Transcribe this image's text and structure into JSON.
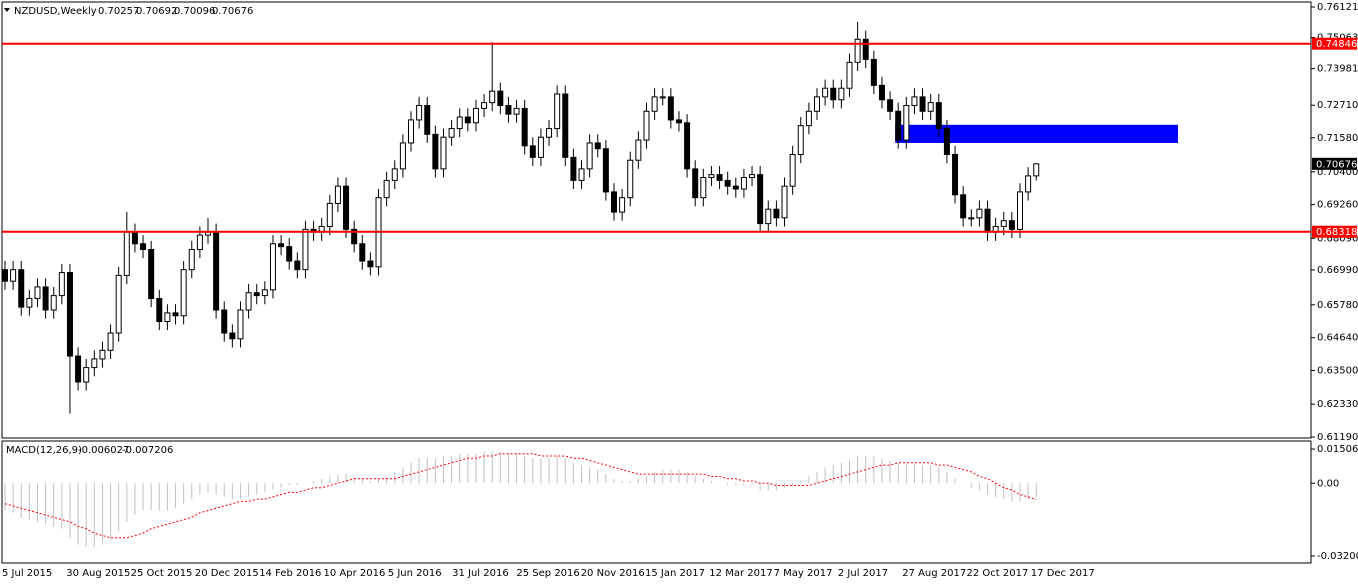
{
  "chart_data": [
    {
      "type": "candlestick",
      "title": "NZDUSD,Weekly",
      "open": [
        0.67,
        0.666,
        0.67,
        0.657,
        0.66,
        0.664,
        0.656,
        0.661,
        0.669,
        0.64,
        0.631,
        0.636,
        0.639,
        0.642,
        0.648,
        0.668,
        0.683,
        0.679,
        0.677,
        0.66,
        0.652,
        0.655,
        0.654,
        0.67,
        0.677,
        0.682,
        0.683,
        0.656,
        0.648,
        0.646,
        0.656,
        0.662,
        0.661,
        0.663,
        0.679,
        0.678,
        0.673,
        0.67,
        0.684,
        0.683,
        0.685,
        0.693,
        0.699,
        0.684,
        0.679,
        0.673,
        0.671,
        0.695,
        0.701,
        0.705,
        0.714,
        0.722,
        0.727,
        0.717,
        0.705,
        0.716,
        0.719,
        0.723,
        0.721,
        0.726,
        0.728,
        0.732,
        0.727,
        0.724,
        0.726,
        0.713,
        0.709,
        0.716,
        0.719,
        0.731,
        0.709,
        0.701,
        0.705,
        0.714,
        0.712,
        0.697,
        0.69,
        0.695,
        0.708,
        0.715,
        0.725,
        0.73,
        0.73,
        0.722,
        0.721,
        0.705,
        0.695,
        0.702,
        0.703,
        0.701,
        0.699,
        0.698,
        0.702,
        0.703,
        0.686,
        0.691,
        0.688,
        0.699,
        0.71,
        0.72,
        0.725,
        0.73,
        0.733,
        0.729,
        0.733,
        0.742,
        0.75,
        0.743,
        0.734,
        0.729,
        0.725,
        0.715,
        0.727,
        0.73,
        0.725,
        0.728,
        0.719,
        0.71,
        0.696,
        0.688,
        0.688,
        0.691,
        0.683,
        0.685,
        0.687,
        0.684,
        0.697,
        0.70257
      ],
      "high": [
        0.673,
        0.673,
        0.673,
        0.663,
        0.667,
        0.667,
        0.664,
        0.672,
        0.672,
        0.643,
        0.639,
        0.642,
        0.645,
        0.651,
        0.671,
        0.69,
        0.686,
        0.682,
        0.68,
        0.663,
        0.658,
        0.658,
        0.673,
        0.68,
        0.685,
        0.688,
        0.686,
        0.659,
        0.651,
        0.659,
        0.665,
        0.665,
        0.666,
        0.682,
        0.682,
        0.681,
        0.676,
        0.687,
        0.687,
        0.688,
        0.696,
        0.702,
        0.702,
        0.687,
        0.682,
        0.676,
        0.698,
        0.704,
        0.708,
        0.717,
        0.725,
        0.73,
        0.73,
        0.72,
        0.719,
        0.722,
        0.726,
        0.726,
        0.729,
        0.731,
        0.749,
        0.735,
        0.73,
        0.729,
        0.729,
        0.716,
        0.719,
        0.722,
        0.734,
        0.734,
        0.712,
        0.708,
        0.717,
        0.717,
        0.715,
        0.7,
        0.698,
        0.711,
        0.718,
        0.728,
        0.733,
        0.733,
        0.733,
        0.725,
        0.724,
        0.708,
        0.705,
        0.706,
        0.706,
        0.704,
        0.702,
        0.705,
        0.706,
        0.706,
        0.694,
        0.694,
        0.702,
        0.713,
        0.723,
        0.728,
        0.733,
        0.736,
        0.736,
        0.736,
        0.745,
        0.756,
        0.753,
        0.746,
        0.737,
        0.732,
        0.728,
        0.73,
        0.733,
        0.733,
        0.731,
        0.731,
        0.722,
        0.713,
        0.699,
        0.691,
        0.694,
        0.694,
        0.688,
        0.69,
        0.69,
        0.7,
        0.7056,
        0.70692
      ],
      "low": [
        0.663,
        0.663,
        0.654,
        0.654,
        0.657,
        0.653,
        0.653,
        0.658,
        0.62,
        0.628,
        0.628,
        0.633,
        0.636,
        0.639,
        0.645,
        0.665,
        0.676,
        0.674,
        0.657,
        0.649,
        0.649,
        0.651,
        0.651,
        0.667,
        0.674,
        0.679,
        0.653,
        0.645,
        0.643,
        0.643,
        0.653,
        0.658,
        0.658,
        0.66,
        0.675,
        0.67,
        0.667,
        0.667,
        0.68,
        0.68,
        0.682,
        0.69,
        0.681,
        0.676,
        0.67,
        0.668,
        0.668,
        0.692,
        0.698,
        0.702,
        0.711,
        0.719,
        0.714,
        0.702,
        0.702,
        0.713,
        0.716,
        0.718,
        0.718,
        0.723,
        0.725,
        0.724,
        0.721,
        0.721,
        0.71,
        0.706,
        0.706,
        0.713,
        0.716,
        0.706,
        0.698,
        0.698,
        0.702,
        0.709,
        0.694,
        0.687,
        0.687,
        0.692,
        0.705,
        0.712,
        0.722,
        0.727,
        0.719,
        0.718,
        0.702,
        0.692,
        0.692,
        0.699,
        0.698,
        0.696,
        0.695,
        0.695,
        0.699,
        0.683,
        0.683,
        0.685,
        0.685,
        0.696,
        0.707,
        0.717,
        0.722,
        0.727,
        0.726,
        0.726,
        0.73,
        0.739,
        0.74,
        0.731,
        0.726,
        0.722,
        0.712,
        0.712,
        0.724,
        0.722,
        0.722,
        0.716,
        0.707,
        0.693,
        0.685,
        0.685,
        0.685,
        0.68,
        0.68,
        0.682,
        0.681,
        0.681,
        0.694,
        0.70096
      ],
      "close": [
        0.666,
        0.67,
        0.657,
        0.66,
        0.664,
        0.656,
        0.661,
        0.669,
        0.64,
        0.631,
        0.636,
        0.639,
        0.642,
        0.648,
        0.668,
        0.683,
        0.679,
        0.677,
        0.66,
        0.652,
        0.655,
        0.654,
        0.67,
        0.677,
        0.682,
        0.683,
        0.656,
        0.648,
        0.646,
        0.656,
        0.662,
        0.661,
        0.663,
        0.679,
        0.678,
        0.673,
        0.67,
        0.684,
        0.683,
        0.685,
        0.693,
        0.699,
        0.684,
        0.679,
        0.673,
        0.671,
        0.695,
        0.701,
        0.705,
        0.714,
        0.722,
        0.727,
        0.717,
        0.705,
        0.716,
        0.719,
        0.723,
        0.721,
        0.726,
        0.728,
        0.732,
        0.727,
        0.724,
        0.726,
        0.713,
        0.709,
        0.716,
        0.719,
        0.731,
        0.709,
        0.701,
        0.705,
        0.714,
        0.712,
        0.697,
        0.69,
        0.695,
        0.708,
        0.715,
        0.725,
        0.73,
        0.73,
        0.722,
        0.721,
        0.705,
        0.695,
        0.702,
        0.703,
        0.701,
        0.699,
        0.698,
        0.702,
        0.703,
        0.686,
        0.691,
        0.688,
        0.699,
        0.71,
        0.72,
        0.725,
        0.73,
        0.733,
        0.729,
        0.733,
        0.742,
        0.75,
        0.743,
        0.734,
        0.729,
        0.725,
        0.715,
        0.727,
        0.73,
        0.725,
        0.728,
        0.719,
        0.71,
        0.696,
        0.688,
        0.688,
        0.691,
        0.683,
        0.685,
        0.687,
        0.684,
        0.697,
        0.70257,
        0.70676
      ],
      "x_labels": [
        "5 Jul 2015",
        "30 Aug 2015",
        "25 Oct 2015",
        "20 Dec 2015",
        "14 Feb 2016",
        "10 Apr 2016",
        "5 Jun 2016",
        "31 Jul 2016",
        "25 Sep 2016",
        "20 Nov 2016",
        "15 Jan 2017",
        "12 Mar 2017",
        "7 May 2017",
        "2 Jul 2017",
        "27 Aug 2017",
        "22 Oct 2017",
        "17 Dec 2017"
      ],
      "ylim": [
        0.6119,
        0.76121
      ],
      "yticks": [
        0.76121,
        0.75063,
        0.73981,
        {
          "value": 0.7271,
          "label": "0.72710"
        },
        {
          "value": 0.7158,
          "label": "0.71580"
        },
        {
          "value": 0.704,
          "label": "0.70400"
        },
        {
          "value": 0.6926,
          "label": "0.69260"
        },
        {
          "value": 0.6809,
          "label": "0.68090"
        },
        {
          "value": 0.6699,
          "label": "0.66990"
        },
        {
          "value": 0.6578,
          "label": "0.65780"
        },
        {
          "value": 0.6464,
          "label": "0.64640"
        },
        {
          "value": 0.635,
          "label": "0.63500"
        },
        {
          "value": 0.6233,
          "label": "0.62330"
        },
        {
          "value": 0.6119,
          "label": "0.61190"
        }
      ],
      "levels": [
        0.74846,
        0.68318
      ],
      "level_color": "#ff0000",
      "zone": [
        0.714,
        0.7203
      ],
      "zone_color": "#0000ff"
    },
    {
      "type": "macd",
      "title": "MACD(12,26,9)",
      "series": [
        {
          "name": "main",
          "color": "#c0c0c0",
          "values": [
            -0.012,
            -0.013,
            -0.015,
            -0.016,
            -0.017,
            -0.018,
            -0.019,
            -0.02,
            -0.024,
            -0.027,
            -0.028,
            -0.028,
            -0.027,
            -0.025,
            -0.021,
            -0.017,
            -0.014,
            -0.012,
            -0.012,
            -0.012,
            -0.012,
            -0.011,
            -0.009,
            -0.007,
            -0.005,
            -0.004,
            -0.005,
            -0.006,
            -0.007,
            -0.007,
            -0.006,
            -0.005,
            -0.004,
            -0.003,
            -0.002,
            -0.001,
            -0.001,
            0,
            0.001,
            0.002,
            0.003,
            0.004,
            0.004,
            0.003,
            0.002,
            0.001,
            0.002,
            0.003,
            0.005,
            0.007,
            0.009,
            0.011,
            0.011,
            0.011,
            0.012,
            0.012,
            0.013,
            0.013,
            0.013,
            0.014,
            0.014,
            0.014,
            0.013,
            0.013,
            0.012,
            0.011,
            0.011,
            0.011,
            0.012,
            0.011,
            0.009,
            0.008,
            0.007,
            0.006,
            0.004,
            0.002,
            0.001,
            0.001,
            0.002,
            0.003,
            0.005,
            0.006,
            0.006,
            0.006,
            0.005,
            0.003,
            0.002,
            0.001,
            0,
            -0.001,
            -0.001,
            -0.001,
            -0.001,
            -0.003,
            -0.003,
            -0.003,
            -0.002,
            -0.001,
            0.001,
            0.003,
            0.005,
            0.007,
            0.008,
            0.009,
            0.01,
            0.012,
            0.012,
            0.012,
            0.011,
            0.01,
            0.009,
            0.009,
            0.009,
            0.008,
            0.008,
            0.007,
            0.005,
            0.002,
            0,
            -0.002,
            -0.003,
            -0.005,
            -0.006,
            -0.007,
            -0.008,
            -0.008,
            -0.007,
            -0.006027
          ]
        },
        {
          "name": "signal",
          "color": "#ff0000",
          "values": [
            -0.009,
            -0.01,
            -0.011,
            -0.012,
            -0.013,
            -0.014,
            -0.015,
            -0.016,
            -0.017,
            -0.019,
            -0.02,
            -0.022,
            -0.023,
            -0.024,
            -0.024,
            -0.024,
            -0.023,
            -0.022,
            -0.02,
            -0.019,
            -0.018,
            -0.017,
            -0.016,
            -0.015,
            -0.013,
            -0.012,
            -0.011,
            -0.01,
            -0.009,
            -0.008,
            -0.008,
            -0.007,
            -0.007,
            -0.006,
            -0.005,
            -0.004,
            -0.004,
            -0.003,
            -0.002,
            -0.002,
            -0.001,
            0,
            0.001,
            0.002,
            0.002,
            0.002,
            0.002,
            0.002,
            0.002,
            0.003,
            0.004,
            0.005,
            0.006,
            0.007,
            0.008,
            0.009,
            0.01,
            0.011,
            0.011,
            0.012,
            0.012,
            0.013,
            0.013,
            0.013,
            0.013,
            0.013,
            0.012,
            0.012,
            0.012,
            0.012,
            0.011,
            0.011,
            0.01,
            0.009,
            0.008,
            0.007,
            0.006,
            0.005,
            0.004,
            0.004,
            0.004,
            0.004,
            0.004,
            0.004,
            0.004,
            0.004,
            0.004,
            0.003,
            0.003,
            0.002,
            0.002,
            0.001,
            0.001,
            0,
            0,
            -0.001,
            -0.001,
            -0.001,
            -0.001,
            -0.001,
            0,
            0.001,
            0.002,
            0.003,
            0.004,
            0.005,
            0.006,
            0.007,
            0.008,
            0.008,
            0.009,
            0.009,
            0.009,
            0.009,
            0.009,
            0.008,
            0.008,
            0.007,
            0.006,
            0.005,
            0.003,
            0.002,
            0,
            -0.002,
            -0.003,
            -0.005,
            -0.006,
            -0.007206
          ]
        }
      ],
      "ylim": [
        -0.0351,
        0.0186
      ],
      "yticks": [
        0.015063,
        {
          "value": 0,
          "label": "0.00"
        },
        -0.032002
      ]
    }
  ]
}
